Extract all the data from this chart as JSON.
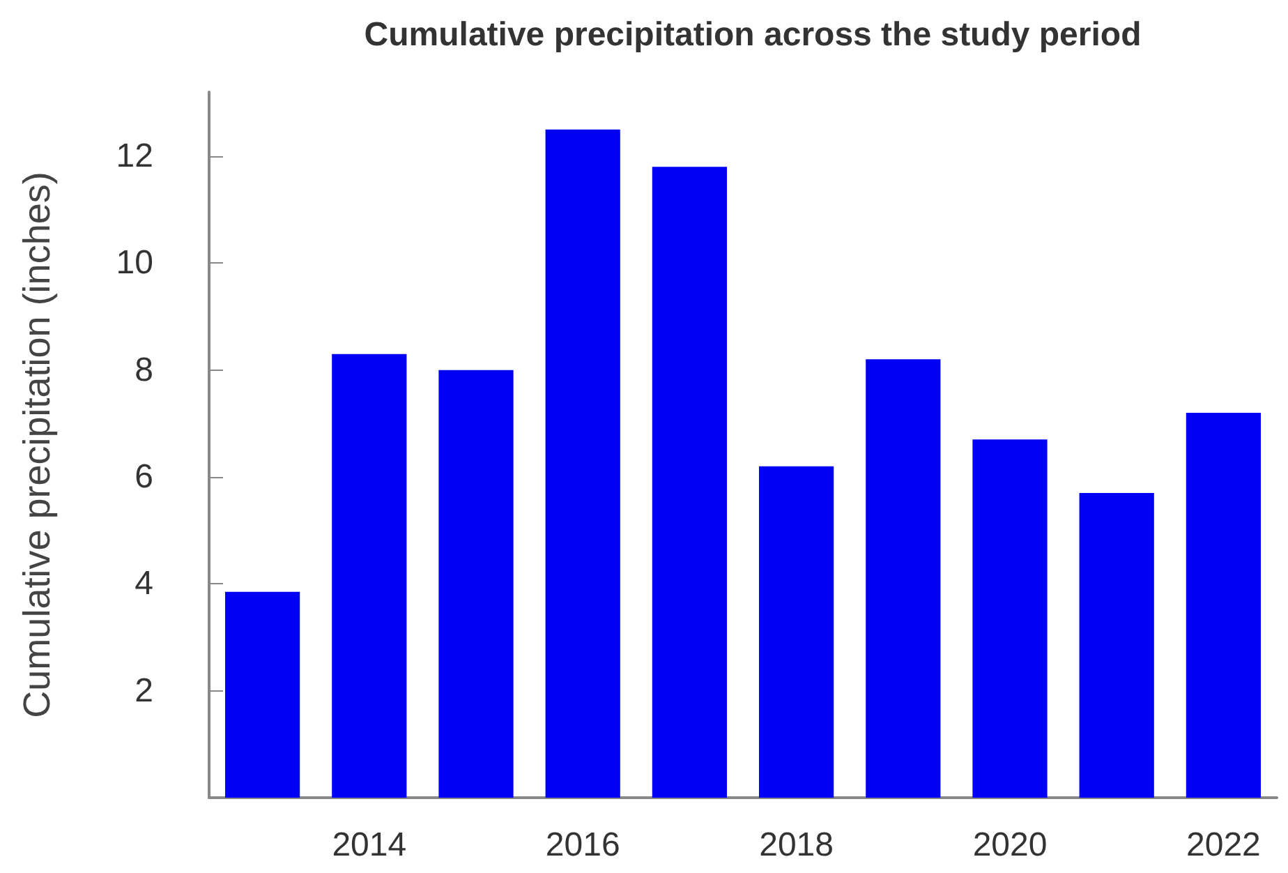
{
  "chart_data": {
    "type": "bar",
    "title": "Cumulative precipitation across the study period",
    "ylabel": "Cumulative precipitation (inches)",
    "categories": [
      null,
      "2014",
      null,
      "2016",
      null,
      "2018",
      null,
      "2020",
      null,
      "2022"
    ],
    "values": [
      3.85,
      8.3,
      8.0,
      12.5,
      11.8,
      6.2,
      8.2,
      6.7,
      5.7,
      7.2
    ],
    "color": "#0000f5",
    "ylim": [
      0,
      13.2
    ],
    "yticks": [
      2,
      4,
      6,
      8,
      10,
      12
    ],
    "grid": false
  }
}
